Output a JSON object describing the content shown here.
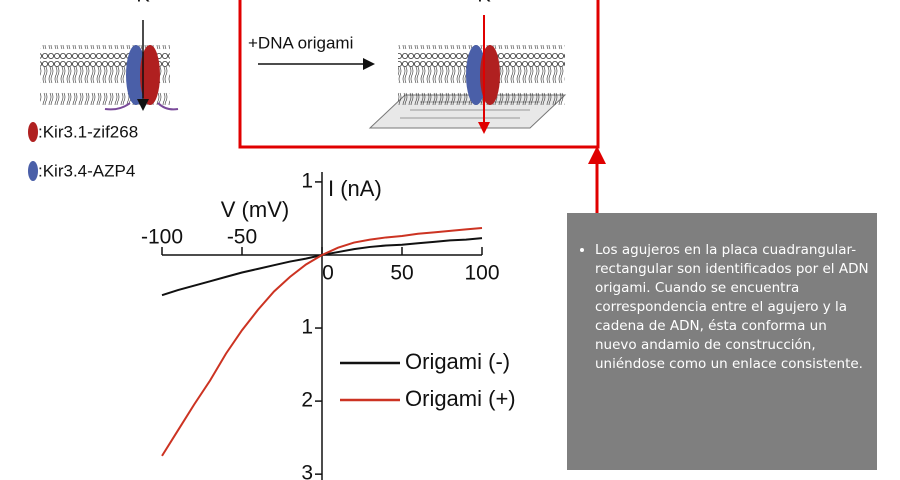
{
  "diagram": {
    "ion_left": "K",
    "ion_right": "K",
    "step": "+DNA origami",
    "subunits": [
      ":Kir3.1-zif268",
      ":Kir3.4-AZP4"
    ]
  },
  "chart_data": {
    "type": "line",
    "x_label": "V (mV)",
    "y_label": "I (nA)",
    "xlim": [
      -100,
      100
    ],
    "ylim": [
      -3.08,
      1.3
    ],
    "xticks": [
      -100,
      -50,
      0,
      50,
      100
    ],
    "yticks": [
      1,
      {
        "value": -1,
        "label": "1"
      },
      {
        "value": -2,
        "label": "2"
      },
      {
        "value": -3,
        "label": "3"
      }
    ],
    "x": [
      -100,
      -90,
      -80,
      -70,
      -60,
      -50,
      -40,
      -30,
      -20,
      -10,
      0,
      10,
      20,
      30,
      40,
      50,
      60,
      70,
      80,
      90,
      100
    ],
    "series": [
      {
        "name": "Origami (-)",
        "color": "#111111",
        "values": [
          -0.55,
          -0.48,
          -0.42,
          -0.36,
          -0.3,
          -0.24,
          -0.19,
          -0.14,
          -0.09,
          -0.05,
          0,
          0.04,
          0.08,
          0.11,
          0.13,
          0.14,
          0.16,
          0.18,
          0.2,
          0.21,
          0.23
        ]
      },
      {
        "name": "Origami (+)",
        "color": "#cc3322",
        "values": [
          -2.75,
          -2.4,
          -2.05,
          -1.72,
          -1.35,
          -1.03,
          -0.75,
          -0.5,
          -0.3,
          -0.13,
          0,
          0.1,
          0.17,
          0.21,
          0.24,
          0.26,
          0.29,
          0.31,
          0.33,
          0.35,
          0.37
        ]
      }
    ]
  },
  "callout": {
    "text": "Los agujeros en la placa cuadrangular-rectangular son identificados por el ADN origami. Cuando se encuentra correspondencia entre el agujero y la cadena de ADN, ésta conforma un nuevo andamio de construcción, uniéndose como un enlace consistente."
  }
}
